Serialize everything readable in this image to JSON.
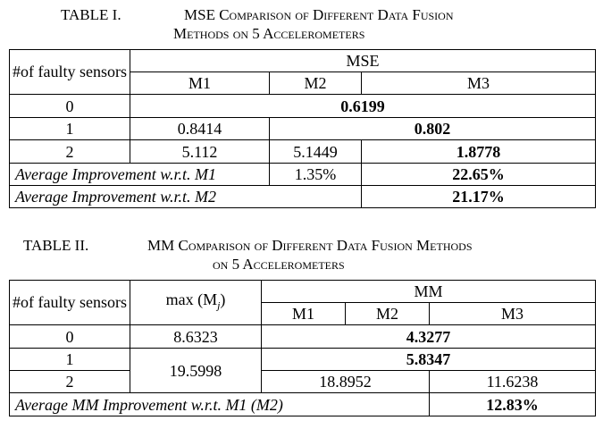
{
  "table1": {
    "caption_label": "TABLE I.",
    "caption_line1": "MSE Comparison of Different Data Fusion",
    "caption_line2": "Methods on 5 Accelerometers",
    "header_faulty": "#of faulty sensors",
    "header_metric": "MSE",
    "methods": [
      "M1",
      "M2",
      "M3"
    ],
    "rows": [
      {
        "faulty": "0",
        "merged": "0.6199"
      },
      {
        "faulty": "1",
        "m1": "0.8414",
        "m23": "0.802"
      },
      {
        "faulty": "2",
        "m1": "5.112",
        "m2": "5.1449",
        "m3": "1.8778"
      }
    ],
    "avg1_label": "Average Improvement w.r.t. M1",
    "avg1_m2": "1.35%",
    "avg1_m3": "22.65%",
    "avg2_label": "Average Improvement w.r.t. M2",
    "avg2_m3": "21.17%"
  },
  "table2": {
    "caption_label": "TABLE II.",
    "caption_line1": "MM Comparison of Different Data Fusion Methods",
    "caption_line2": "on 5 Accelerometers",
    "header_faulty": "#of faulty sensors",
    "header_max": "max (M",
    "header_max_sub": "j",
    "header_max_close": ")",
    "header_metric": "MM",
    "methods": [
      "M1",
      "M2",
      "M3"
    ],
    "rows": [
      {
        "faulty": "0",
        "max": "8.6323",
        "merged": "4.3277"
      },
      {
        "faulty": "1",
        "max": "19.5998",
        "merged": "5.8347"
      },
      {
        "faulty": "2",
        "m12": "18.8952",
        "m3": "11.6238"
      }
    ],
    "avg_label": "Average MM Improvement w.r.t. M1 (M2)",
    "avg_m3": "12.83%"
  }
}
